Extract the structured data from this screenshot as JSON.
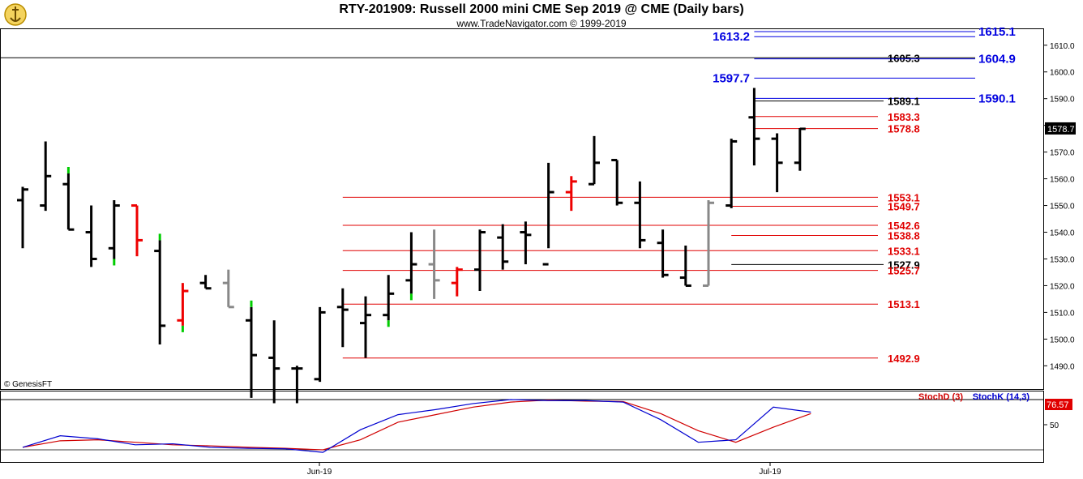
{
  "header": {
    "title": "RTY-201909:  Russell 2000 mini CME Sep 2019 @ CME  (Daily bars)",
    "subtitle": "www.TradeNavigator.com © 1999-2019"
  },
  "credit": "© GenesisFT",
  "colors": {
    "up_bar": "#000000",
    "down_bar": "#000000",
    "support": "#e00000",
    "resistance": "#0000e0",
    "stoch_d": "#d00000",
    "stoch_k": "#0000d0",
    "green_tick": "#00cc00",
    "gray_bar": "#888888",
    "red_bar": "#ee0000"
  },
  "chart_data": {
    "type": "ohlc",
    "title": "RTY-201909:  Russell 2000 mini CME Sep 2019 @ CME  (Daily bars)",
    "price_axis": {
      "ylim": [
        1481,
        1616
      ],
      "ticks": [
        "1490.0",
        "1500.0",
        "1510.0",
        "1520.0",
        "1530.0",
        "1540.0",
        "1550.0",
        "1560.0",
        "1570.0",
        "1580.0",
        "1590.0",
        "1600.0",
        "1610.0"
      ]
    },
    "last_price": "1578.7",
    "x_ticks": [
      "Jun-19",
      "Jul-19"
    ],
    "bars": [
      {
        "o": 1552,
        "h": 1557,
        "l": 1534,
        "c": 1556,
        "color": "black"
      },
      {
        "o": 1550,
        "h": 1574,
        "l": 1548,
        "c": 1561,
        "color": "black"
      },
      {
        "o": 1558,
        "h": 1562,
        "l": 1541,
        "c": 1541,
        "color": "black",
        "tick": "green"
      },
      {
        "o": 1540,
        "h": 1550,
        "l": 1527,
        "c": 1530,
        "color": "black"
      },
      {
        "o": 1534,
        "h": 1552,
        "l": 1530,
        "c": 1550,
        "color": "black",
        "tick": "green"
      },
      {
        "o": 1550,
        "h": 1550,
        "l": 1531,
        "c": 1537,
        "color": "red"
      },
      {
        "o": 1533,
        "h": 1537,
        "l": 1498,
        "c": 1505,
        "color": "black",
        "tick": "green"
      },
      {
        "o": 1507,
        "h": 1521,
        "l": 1505,
        "c": 1518,
        "color": "red",
        "tick": "green"
      },
      {
        "o": 1521,
        "h": 1524,
        "l": 1519,
        "c": 1519,
        "color": "black"
      },
      {
        "o": 1521,
        "h": 1526,
        "l": 1512,
        "c": 1512,
        "color": "gray"
      },
      {
        "o": 1507,
        "h": 1512,
        "l": 1478,
        "c": 1494,
        "color": "black",
        "tick": "green"
      },
      {
        "o": 1493,
        "h": 1507,
        "l": 1476,
        "c": 1489,
        "color": "black"
      },
      {
        "o": 1489,
        "h": 1490,
        "l": 1476,
        "c": 1489,
        "color": "black"
      },
      {
        "o": 1485,
        "h": 1512,
        "l": 1484,
        "c": 1510,
        "color": "black"
      },
      {
        "o": 1512,
        "h": 1519,
        "l": 1497,
        "c": 1511,
        "color": "black"
      },
      {
        "o": 1506,
        "h": 1516,
        "l": 1493,
        "c": 1509,
        "color": "black"
      },
      {
        "o": 1509,
        "h": 1524,
        "l": 1507,
        "c": 1517,
        "color": "black",
        "tick": "green"
      },
      {
        "o": 1522,
        "h": 1540,
        "l": 1517,
        "c": 1528,
        "color": "black",
        "tick": "green"
      },
      {
        "o": 1528,
        "h": 1541,
        "l": 1515,
        "c": 1522,
        "color": "gray"
      },
      {
        "o": 1521,
        "h": 1527,
        "l": 1516,
        "c": 1526,
        "color": "red"
      },
      {
        "o": 1526,
        "h": 1541,
        "l": 1518,
        "c": 1540,
        "color": "black"
      },
      {
        "o": 1538,
        "h": 1543,
        "l": 1526,
        "c": 1529,
        "color": "black"
      },
      {
        "o": 1540,
        "h": 1544,
        "l": 1528,
        "c": 1539,
        "color": "black"
      },
      {
        "o": 1528,
        "h": 1566,
        "l": 1534,
        "c": 1555,
        "color": "black"
      },
      {
        "o": 1555,
        "h": 1561,
        "l": 1548,
        "c": 1559,
        "color": "red"
      },
      {
        "o": 1558,
        "h": 1576,
        "l": 1558,
        "c": 1566,
        "color": "black"
      },
      {
        "o": 1567,
        "h": 1567,
        "l": 1550,
        "c": 1551,
        "color": "black"
      },
      {
        "o": 1551,
        "h": 1559,
        "l": 1534,
        "c": 1537,
        "color": "black"
      },
      {
        "o": 1536,
        "h": 1541,
        "l": 1523,
        "c": 1524,
        "color": "black"
      },
      {
        "o": 1523,
        "h": 1535,
        "l": 1520,
        "c": 1520,
        "color": "black"
      },
      {
        "o": 1520,
        "h": 1552,
        "l": 1520,
        "c": 1551,
        "color": "gray"
      },
      {
        "o": 1550,
        "h": 1575,
        "l": 1549,
        "c": 1574,
        "color": "black"
      },
      {
        "o": 1583,
        "h": 1594,
        "l": 1565,
        "c": 1575,
        "color": "black"
      },
      {
        "o": 1575,
        "h": 1577,
        "l": 1555,
        "c": 1566,
        "color": "black"
      },
      {
        "o": 1566,
        "h": 1579,
        "l": 1563,
        "c": 1578.7,
        "color": "black"
      }
    ],
    "levels": [
      {
        "value": 1615.1,
        "label": "1615.1",
        "color": "blue",
        "start": 32,
        "side": "right"
      },
      {
        "value": 1613.2,
        "label": "1613.2",
        "color": "blue",
        "start": 32,
        "side": "left"
      },
      {
        "value": 1605.3,
        "label": "1605.3",
        "color": "black",
        "start": 0,
        "side": "right",
        "full": true
      },
      {
        "value": 1604.9,
        "label": "1604.9",
        "color": "blue",
        "start": 32,
        "side": "right"
      },
      {
        "value": 1597.7,
        "label": "1597.7",
        "color": "blue",
        "start": 32,
        "side": "left"
      },
      {
        "value": 1590.1,
        "label": "1590.1",
        "color": "blue",
        "start": 32,
        "side": "right"
      },
      {
        "value": 1589.1,
        "label": "1589.1",
        "color": "black",
        "start": 32,
        "side": "right"
      },
      {
        "value": 1583.3,
        "label": "1583.3",
        "color": "red",
        "start": 32,
        "side": "right"
      },
      {
        "value": 1578.8,
        "label": "1578.8",
        "color": "red",
        "start": 32,
        "side": "right"
      },
      {
        "value": 1553.1,
        "label": "1553.1",
        "color": "red",
        "start": 14,
        "side": "right"
      },
      {
        "value": 1549.7,
        "label": "1549.7",
        "color": "red",
        "start": 31,
        "side": "right"
      },
      {
        "value": 1542.6,
        "label": "1542.6",
        "color": "red",
        "start": 14,
        "side": "right"
      },
      {
        "value": 1538.8,
        "label": "1538.8",
        "color": "red",
        "start": 31,
        "side": "right"
      },
      {
        "value": 1533.1,
        "label": "1533.1",
        "color": "red",
        "start": 14,
        "side": "right"
      },
      {
        "value": 1527.9,
        "label": "1527.9",
        "color": "black",
        "start": 31,
        "side": "right"
      },
      {
        "value": 1525.7,
        "label": "1525.7",
        "color": "red",
        "start": 14,
        "side": "right"
      },
      {
        "value": 1513.1,
        "label": "1513.1",
        "color": "red",
        "start": 14,
        "side": "right"
      },
      {
        "value": 1492.9,
        "label": "1492.9",
        "color": "red",
        "start": 14,
        "side": "right"
      }
    ],
    "stochastic": {
      "legend_d": "StochD (3)",
      "legend_k": "StochK (14,3)",
      "last_value": "76.57",
      "tick_label": "50",
      "ylim": [
        0,
        100
      ],
      "k": [
        5,
        28,
        22,
        10,
        12,
        5,
        3,
        2,
        -5,
        40,
        70,
        80,
        92,
        100,
        98,
        98,
        95,
        60,
        15,
        20,
        85,
        75
      ],
      "d": [
        5,
        18,
        20,
        15,
        10,
        8,
        5,
        3,
        0,
        20,
        55,
        70,
        85,
        95,
        99,
        97,
        96,
        72,
        38,
        15,
        45,
        72
      ]
    }
  }
}
